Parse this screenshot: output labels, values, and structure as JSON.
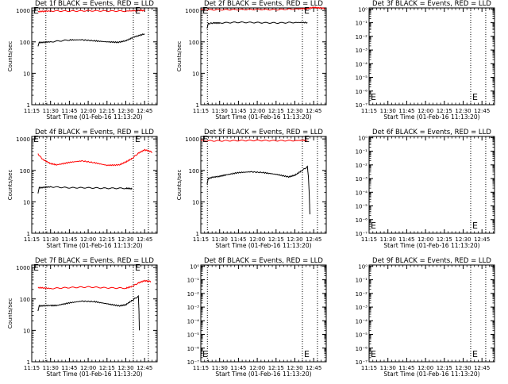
{
  "chart_data": [
    {
      "type": "line",
      "title": "Det 1f BLACK = Events, RED = LLD",
      "xlabel": "Start Time (01-Feb-16 11:13:20)",
      "ylabel": "Counts/sec",
      "yscale": "log",
      "ylim": [
        1,
        1200
      ],
      "yticks": [
        "1",
        "10",
        "100",
        "1000"
      ],
      "xlim": [
        11.25,
        12.9167
      ],
      "xticks": [
        "11:15",
        "11:30",
        "11:45",
        "12:00",
        "12:15",
        "12:30",
        "12:45"
      ],
      "marker_label": "E",
      "vlines": [
        11.4375,
        12.6,
        12.8
      ],
      "series": [
        {
          "color": "#ff0000",
          "points": [
            [
              11.333,
              920
            ],
            [
              11.5,
              960
            ],
            [
              11.75,
              950
            ],
            [
              12.0,
              975
            ],
            [
              12.25,
              960
            ],
            [
              12.5,
              950
            ],
            [
              12.667,
              995
            ],
            [
              12.75,
              1000
            ]
          ]
        },
        {
          "color": "#000000",
          "points": [
            [
              11.333,
              70
            ],
            [
              11.35,
              95
            ],
            [
              11.5,
              100
            ],
            [
              11.75,
              115
            ],
            [
              11.917,
              116
            ],
            [
              12.083,
              108
            ],
            [
              12.25,
              100
            ],
            [
              12.4,
              97
            ],
            [
              12.5,
              108
            ],
            [
              12.6,
              140
            ],
            [
              12.75,
              180
            ]
          ]
        }
      ]
    },
    {
      "type": "line",
      "title": "Det 2f BLACK = Events, RED = LLD",
      "xlabel": "Start Time (01-Feb-16 11:13:20)",
      "ylabel": "Counts/sec",
      "yscale": "log",
      "ylim": [
        1,
        1200
      ],
      "yticks": [
        "1",
        "10",
        "100",
        "1000"
      ],
      "xlim": [
        11.25,
        12.9167
      ],
      "xticks": [
        "11:15",
        "11:30",
        "11:45",
        "12:00",
        "12:15",
        "12:30",
        "12:45"
      ],
      "marker_label": "E",
      "vlines": [
        11.3375,
        12.6,
        12.8
      ],
      "series": [
        {
          "color": "#ff0000",
          "points": [
            [
              11.25,
              1050
            ],
            [
              11.5,
              1050
            ],
            [
              11.75,
              1070
            ],
            [
              12.0,
              1080
            ],
            [
              12.25,
              1060
            ],
            [
              12.5,
              1120
            ],
            [
              12.667,
              1150
            ],
            [
              12.75,
              1250
            ],
            [
              12.833,
              1200
            ],
            [
              12.9,
              1150
            ]
          ]
        },
        {
          "color": "#000000",
          "points": [
            [
              11.333,
              260
            ],
            [
              11.35,
              380
            ],
            [
              11.417,
              400
            ],
            [
              11.5,
              400
            ],
            [
              11.75,
              420
            ],
            [
              12.0,
              410
            ],
            [
              12.25,
              400
            ],
            [
              12.5,
              415
            ],
            [
              12.667,
              410
            ]
          ]
        }
      ]
    },
    {
      "type": "line",
      "title": "Det 3f BLACK = Events, RED = LLD",
      "xlabel": "Start Time (01-Feb-16 11:13:20)",
      "ylabel": "",
      "yscale": "log",
      "ylim": [
        1e-07,
        1.2
      ],
      "yticks": [
        "10⁻⁷",
        "10⁻⁶",
        "10⁻⁵",
        "10⁻⁴",
        "10⁻³",
        "10⁻²",
        "10⁻¹",
        "10⁰"
      ],
      "xlim": [
        11.25,
        12.9167
      ],
      "xticks": [
        "11:15",
        "11:30",
        "11:45",
        "12:00",
        "12:15",
        "12:30",
        "12:45"
      ],
      "marker_label": "E",
      "vlines": [
        12.6,
        12.8
      ],
      "series": []
    },
    {
      "type": "line",
      "title": "Det 4f BLACK = Events, RED = LLD",
      "xlabel": "Start Time (01-Feb-16 11:13:20)",
      "ylabel": "Counts/sec",
      "yscale": "log",
      "ylim": [
        1,
        1200
      ],
      "yticks": [
        "1",
        "10",
        "100",
        "1000"
      ],
      "xlim": [
        11.25,
        12.9167
      ],
      "xticks": [
        "11:15",
        "11:30",
        "11:45",
        "12:00",
        "12:15",
        "12:30",
        "12:45"
      ],
      "marker_label": "E",
      "vlines": [
        11.4375,
        12.6,
        12.8
      ],
      "series": [
        {
          "color": "#ff0000",
          "points": [
            [
              11.333,
              330
            ],
            [
              11.4,
              220
            ],
            [
              11.5,
              165
            ],
            [
              11.583,
              150
            ],
            [
              11.75,
              180
            ],
            [
              11.917,
              200
            ],
            [
              12.083,
              175
            ],
            [
              12.25,
              145
            ],
            [
              12.417,
              150
            ],
            [
              12.5,
              185
            ],
            [
              12.583,
              240
            ],
            [
              12.667,
              350
            ],
            [
              12.75,
              450
            ],
            [
              12.8,
              420
            ],
            [
              12.85,
              380
            ]
          ]
        },
        {
          "color": "#000000",
          "points": [
            [
              11.333,
              18
            ],
            [
              11.35,
              28
            ],
            [
              11.5,
              30
            ],
            [
              11.75,
              28
            ],
            [
              12.0,
              28
            ],
            [
              12.25,
              27
            ],
            [
              12.5,
              27
            ],
            [
              12.583,
              26
            ]
          ]
        }
      ]
    },
    {
      "type": "line",
      "title": "Det 5f BLACK = Events, RED = LLD",
      "xlabel": "Start Time (01-Feb-16 11:13:20)",
      "ylabel": "Counts/sec",
      "yscale": "log",
      "ylim": [
        1,
        1200
      ],
      "yticks": [
        "1",
        "10",
        "100",
        "1000"
      ],
      "xlim": [
        11.25,
        12.9167
      ],
      "xticks": [
        "11:15",
        "11:30",
        "11:45",
        "12:00",
        "12:15",
        "12:30",
        "12:45"
      ],
      "marker_label": "E",
      "vlines": [
        11.3375,
        12.6,
        12.8
      ],
      "series": [
        {
          "color": "#ff0000",
          "points": [
            [
              11.25,
              880
            ],
            [
              11.5,
              870
            ],
            [
              11.75,
              890
            ],
            [
              12.0,
              900
            ],
            [
              12.25,
              880
            ],
            [
              12.5,
              890
            ],
            [
              12.667,
              920
            ]
          ]
        },
        {
          "color": "#000000",
          "points": [
            [
              11.333,
              35
            ],
            [
              11.35,
              55
            ],
            [
              11.4,
              60
            ],
            [
              11.5,
              65
            ],
            [
              11.583,
              72
            ],
            [
              11.75,
              85
            ],
            [
              11.917,
              90
            ],
            [
              12.083,
              85
            ],
            [
              12.25,
              75
            ],
            [
              12.417,
              62
            ],
            [
              12.5,
              70
            ],
            [
              12.583,
              95
            ],
            [
              12.667,
              130
            ],
            [
              12.68,
              60
            ],
            [
              12.69,
              20
            ],
            [
              12.7,
              4
            ]
          ]
        }
      ]
    },
    {
      "type": "line",
      "title": "Det 6f BLACK = Events, RED = LLD",
      "xlabel": "Start Time (01-Feb-16 11:13:20)",
      "ylabel": "",
      "yscale": "log",
      "ylim": [
        1e-07,
        1.2
      ],
      "yticks": [
        "10⁻⁷",
        "10⁻⁶",
        "10⁻⁵",
        "10⁻⁴",
        "10⁻³",
        "10⁻²",
        "10⁻¹",
        "10⁰"
      ],
      "xlim": [
        11.25,
        12.9167
      ],
      "xticks": [
        "11:15",
        "11:30",
        "11:45",
        "12:00",
        "12:15",
        "12:30",
        "12:45"
      ],
      "marker_label": "E",
      "vlines": [
        12.6,
        12.8
      ],
      "series": []
    },
    {
      "type": "line",
      "title": "Det 7f BLACK = Events, RED = LLD",
      "xlabel": "Start Time (01-Feb-16 11:13:20)",
      "ylabel": "Counts/sec",
      "yscale": "log",
      "ylim": [
        1,
        1200
      ],
      "yticks": [
        "1",
        "10",
        "100",
        "1000"
      ],
      "xlim": [
        11.25,
        12.9167
      ],
      "xticks": [
        "11:15",
        "11:30",
        "11:45",
        "12:00",
        "12:15",
        "12:30",
        "12:45"
      ],
      "marker_label": "E",
      "vlines": [
        11.4375,
        12.6,
        12.8
      ],
      "series": [
        {
          "color": "#ff0000",
          "points": [
            [
              11.333,
              230
            ],
            [
              11.5,
              215
            ],
            [
              11.75,
              230
            ],
            [
              12.0,
              240
            ],
            [
              12.25,
              225
            ],
            [
              12.5,
              220
            ],
            [
              12.583,
              250
            ],
            [
              12.667,
              320
            ],
            [
              12.75,
              380
            ],
            [
              12.833,
              360
            ]
          ]
        },
        {
          "color": "#000000",
          "points": [
            [
              11.333,
              40
            ],
            [
              11.35,
              60
            ],
            [
              11.5,
              62
            ],
            [
              11.583,
              62
            ],
            [
              11.75,
              75
            ],
            [
              11.917,
              85
            ],
            [
              12.083,
              82
            ],
            [
              12.25,
              70
            ],
            [
              12.417,
              60
            ],
            [
              12.5,
              65
            ],
            [
              12.583,
              90
            ],
            [
              12.667,
              120
            ],
            [
              12.675,
              40
            ],
            [
              12.68,
              10
            ]
          ]
        }
      ]
    },
    {
      "type": "line",
      "title": "Det 8f BLACK = Events, RED = LLD",
      "xlabel": "Start Time (01-Feb-16 11:13:20)",
      "ylabel": "",
      "yscale": "log",
      "ylim": [
        1e-07,
        1.2
      ],
      "yticks": [
        "10⁻⁷",
        "10⁻⁶",
        "10⁻⁵",
        "10⁻⁴",
        "10⁻³",
        "10⁻²",
        "10⁻¹",
        "10⁰"
      ],
      "xlim": [
        11.25,
        12.9167
      ],
      "xticks": [
        "11:15",
        "11:30",
        "11:45",
        "12:00",
        "12:15",
        "12:30",
        "12:45"
      ],
      "marker_label": "E",
      "vlines": [
        11.3375,
        12.6,
        12.8
      ],
      "series": []
    },
    {
      "type": "line",
      "title": "Det 9f BLACK = Events, RED = LLD",
      "xlabel": "Start Time (01-Feb-16 11:13:20)",
      "ylabel": "",
      "yscale": "log",
      "ylim": [
        1e-07,
        1.2
      ],
      "yticks": [
        "10⁻⁷",
        "10⁻⁶",
        "10⁻⁵",
        "10⁻⁴",
        "10⁻³",
        "10⁻²",
        "10⁻¹",
        "10⁰"
      ],
      "xlim": [
        11.25,
        12.9167
      ],
      "xticks": [
        "11:15",
        "11:30",
        "11:45",
        "12:00",
        "12:15",
        "12:30",
        "12:45"
      ],
      "marker_label": "E",
      "vlines": [
        12.6,
        12.8
      ],
      "series": []
    }
  ]
}
